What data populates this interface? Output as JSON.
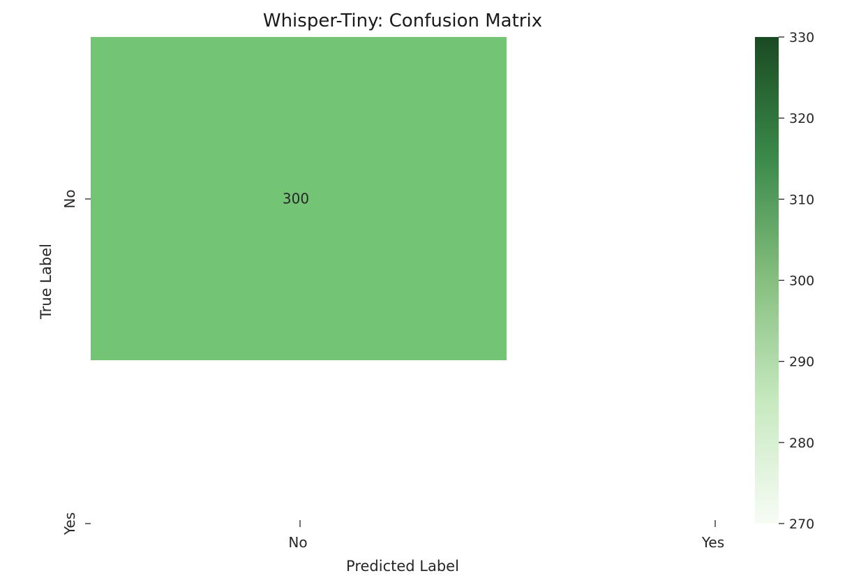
{
  "chart_data": {
    "type": "heatmap",
    "title": "Whisper-Tiny: Confusion Matrix",
    "xlabel": "Predicted Label",
    "ylabel": "True Label",
    "x_categories": [
      "No",
      "Yes"
    ],
    "y_categories": [
      "No",
      "Yes"
    ],
    "cells": [
      {
        "true": "No",
        "predicted": "No",
        "value": 300,
        "label": "300"
      }
    ],
    "colorbar": {
      "range": [
        270,
        330
      ],
      "ticks": [
        270,
        280,
        290,
        300,
        310,
        320,
        330
      ],
      "colormap": "Greens",
      "colors": [
        "#f7fcf5",
        "#c7e9c0",
        "#74c476",
        "#238b45",
        "#00441b"
      ]
    },
    "grid": false,
    "legend": "none"
  }
}
